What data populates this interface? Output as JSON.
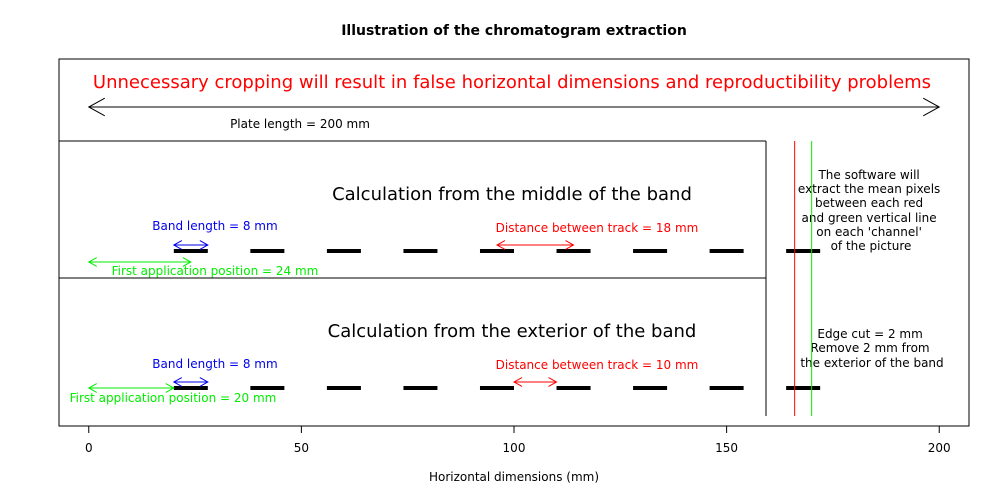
{
  "chart_data": {
    "type": "diagram",
    "title": "Illustration of the chromatogram extraction",
    "xlabel": "Horizontal dimensions (mm)",
    "ylabel": "",
    "xlim": [
      -7,
      207
    ],
    "x_ticks": [
      0,
      50,
      100,
      150,
      200
    ],
    "grid": false,
    "colors": {
      "black": "#000000",
      "red": "#ff0000",
      "green": "#00ee00",
      "blue": "#0000ee"
    },
    "plate": {
      "length_mm": 200,
      "length_label": "Plate length = 200 mm",
      "warning": "Unnecessary cropping will result in false horizontal dimensions and reproductibility problems"
    },
    "bands_x_mm": [
      20,
      38,
      56,
      74,
      92,
      110,
      128,
      146,
      164
    ],
    "band_length_mm": 8,
    "middle": {
      "title": "Calculation from the middle of the band",
      "band_length_label": "Band length = 8 mm",
      "band_length_arrow_mm": [
        20,
        28
      ],
      "distance_label": "Distance between track  = 18 mm",
      "distance_arrow_mm": [
        96,
        114
      ],
      "first_position_label": "First application position = 24 mm",
      "first_position_arrow_mm": [
        0,
        24
      ]
    },
    "exterior": {
      "title": "Calculation from the exterior of the band",
      "band_length_label": "Band length = 8 mm",
      "band_length_arrow_mm": [
        20,
        28
      ],
      "distance_label": "Distance between track  = 10 mm",
      "distance_arrow_mm": [
        100,
        110
      ],
      "first_position_label": "First application position = 20 mm",
      "first_position_arrow_mm": [
        0,
        20
      ]
    },
    "divider_x_mm": 160,
    "red_line_x_mm": 166,
    "green_line_x_mm": 170,
    "software_note": [
      "The software will",
      "extract the mean pixels",
      "between each red",
      "and green vertical line",
      "on each 'channel'",
      "of the picture"
    ],
    "edge_note": [
      "Edge cut = 2 mm",
      "Remove 2 mm from",
      "the exterior of the band"
    ]
  }
}
